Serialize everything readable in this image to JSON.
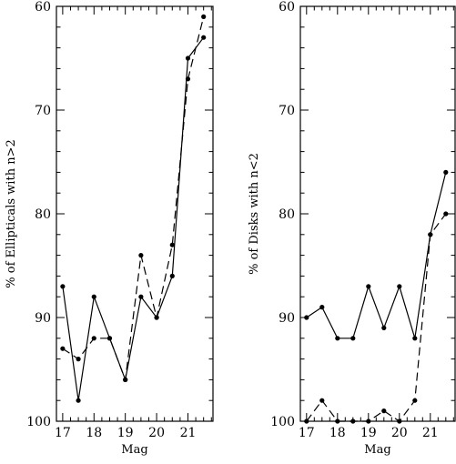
{
  "chart_data": [
    {
      "type": "line",
      "title": "",
      "xlabel": "Mag",
      "ylabel": "% of Ellipticals with n>2",
      "xlim": [
        16.8,
        21.8
      ],
      "ylim": [
        100,
        60
      ],
      "y_inverted": true,
      "x_ticks": [
        17,
        18,
        19,
        20,
        21
      ],
      "x_tick_labels": [
        "17",
        "18",
        "19",
        "20",
        "21"
      ],
      "y_ticks": [
        60,
        70,
        80,
        90,
        100
      ],
      "y_tick_labels": [
        "60",
        "70",
        "80",
        "90",
        "100"
      ],
      "grid": false,
      "series": [
        {
          "style": "solid",
          "x": [
            17,
            17.5,
            18,
            18.5,
            19,
            19.5,
            20,
            20.5,
            21,
            21.5
          ],
          "y": [
            87,
            98,
            88,
            92,
            96,
            88,
            90,
            86,
            65,
            63
          ]
        },
        {
          "style": "dashed",
          "x": [
            17,
            17.5,
            18,
            18.5,
            19,
            19.5,
            20,
            20.5,
            21,
            21.5
          ],
          "y": [
            93,
            94,
            92,
            92,
            96,
            84,
            90,
            83,
            67,
            61
          ]
        }
      ]
    },
    {
      "type": "line",
      "title": "",
      "xlabel": "Mag",
      "ylabel": "% of Disks with n<2",
      "xlim": [
        16.8,
        21.8
      ],
      "ylim": [
        100,
        60
      ],
      "y_inverted": true,
      "x_ticks": [
        17,
        18,
        19,
        20,
        21
      ],
      "x_tick_labels": [
        "17",
        "18",
        "19",
        "20",
        "21"
      ],
      "y_ticks": [
        60,
        70,
        80,
        90,
        100
      ],
      "y_tick_labels": [
        "60",
        "70",
        "80",
        "90",
        "100"
      ],
      "grid": false,
      "series": [
        {
          "style": "solid",
          "x": [
            17,
            17.5,
            18,
            18.5,
            19,
            19.5,
            20,
            20.5,
            21,
            21.5
          ],
          "y": [
            90,
            89,
            92,
            92,
            87,
            91,
            87,
            92,
            82,
            76
          ]
        },
        {
          "style": "dashed",
          "x": [
            17,
            17.5,
            18,
            18.5,
            19,
            19.5,
            20,
            20.5,
            21,
            21.5
          ],
          "y": [
            100,
            98,
            100,
            100,
            100,
            99,
            100,
            98,
            82,
            80
          ]
        }
      ]
    }
  ]
}
